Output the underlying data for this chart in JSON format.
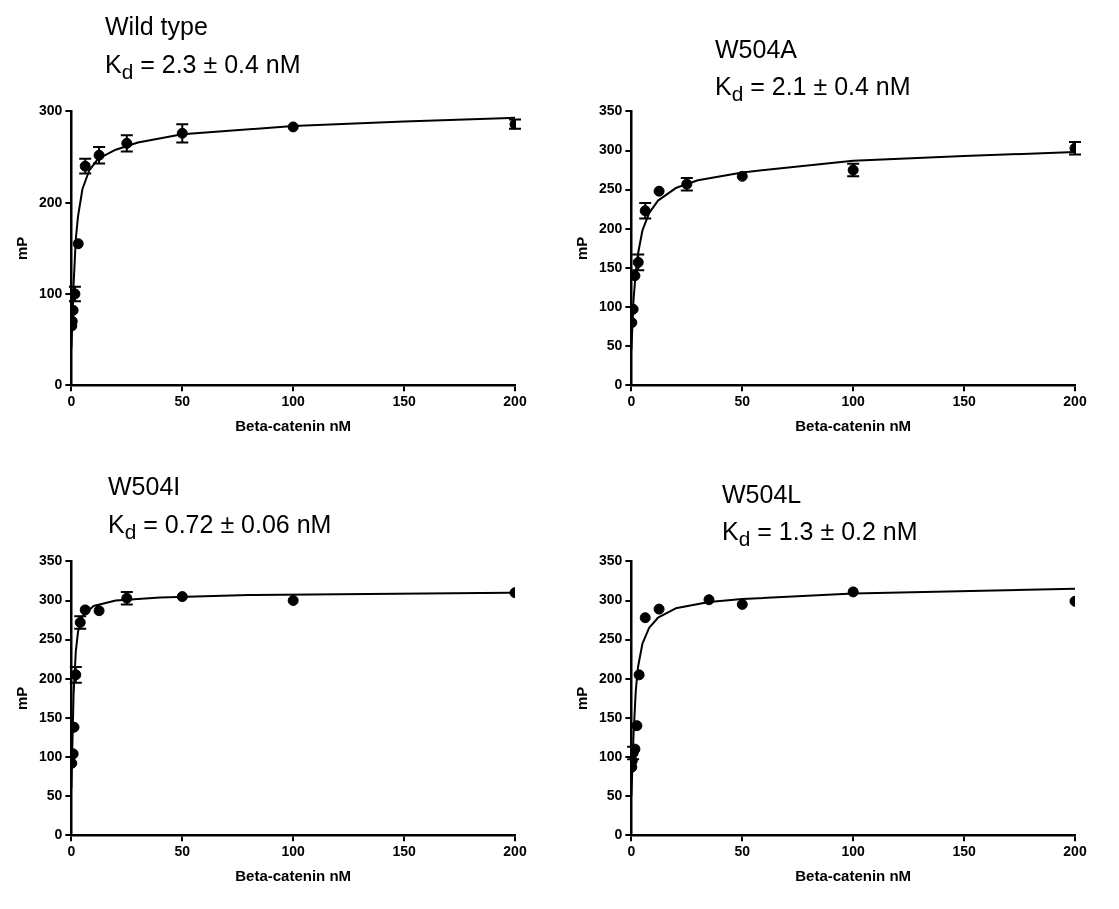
{
  "chart_data": [
    {
      "type": "scatter",
      "title": "Wild type",
      "subtitle": "K$_{d}$ = 2.3 ± 0.4 nM",
      "xlabel": "Beta-catenin nM",
      "ylabel": "mP",
      "xlim": [
        0,
        200
      ],
      "xticks": [
        0,
        50,
        100,
        150,
        200
      ],
      "ylim": [
        0,
        300
      ],
      "yticks": [
        0,
        100,
        200,
        300
      ],
      "marker": "circle",
      "series": [
        {
          "color": "#000000",
          "x": [
            0.2,
            0.4,
            0.8,
            1.6,
            3.1,
            6.25,
            12.5,
            25,
            50,
            100,
            200
          ],
          "values": [
            65,
            70,
            82,
            100,
            155,
            240,
            252,
            265,
            276,
            283,
            286
          ],
          "errors": [
            null,
            null,
            null,
            8,
            null,
            8,
            9,
            9,
            10,
            null,
            5
          ]
        },
        {
          "type": "line",
          "color": "#000000",
          "marker": "none",
          "x": [
            0,
            1,
            2,
            3,
            5,
            8,
            12,
            20,
            30,
            50,
            100,
            150,
            200
          ],
          "values": [
            40,
            110,
            160,
            185,
            215,
            235,
            248,
            258,
            266,
            275,
            284,
            289,
            293
          ]
        }
      ]
    },
    {
      "type": "scatter",
      "title": "W504A",
      "subtitle": "K$_{d}$ = 2.1 ± 0.4 nM",
      "xlabel": "Beta-catenin nM",
      "ylabel": "mP",
      "xlim": [
        0,
        200
      ],
      "xticks": [
        0,
        50,
        100,
        150,
        200
      ],
      "ylim": [
        0,
        350
      ],
      "yticks": [
        0,
        50,
        100,
        150,
        200,
        250,
        300,
        350
      ],
      "marker": "circle",
      "series": [
        {
          "color": "#000000",
          "x": [
            0.2,
            0.4,
            0.8,
            1.6,
            3.1,
            6.25,
            12.5,
            25,
            50,
            100,
            200
          ],
          "values": [
            80,
            null,
            97,
            140,
            157,
            223,
            248,
            257,
            267,
            275,
            303
          ],
          "errors": [
            null,
            null,
            null,
            null,
            10,
            10,
            null,
            8,
            null,
            8,
            8
          ]
        },
        {
          "type": "line",
          "color": "#000000",
          "marker": "none",
          "x": [
            0,
            1,
            2,
            3,
            5,
            8,
            12,
            20,
            30,
            50,
            100,
            150,
            200
          ],
          "values": [
            45,
            110,
            145,
            168,
            198,
            220,
            236,
            252,
            262,
            272,
            287,
            293,
            298
          ]
        }
      ]
    },
    {
      "type": "scatter",
      "title": "W504I",
      "subtitle": "K$_{d}$ = 0.72 ± 0.06 nM",
      "xlabel": "Beta-catenin nM",
      "ylabel": "mP",
      "xlim": [
        0,
        200
      ],
      "xticks": [
        0,
        50,
        100,
        150,
        200
      ],
      "ylim": [
        0,
        350
      ],
      "yticks": [
        0,
        50,
        100,
        150,
        200,
        250,
        300,
        350
      ],
      "marker": "circle",
      "series": [
        {
          "color": "#000000",
          "x": [
            0.2,
            0.4,
            0.8,
            1.2,
            2,
            4,
            6.25,
            12.5,
            25,
            50,
            100,
            200
          ],
          "values": [
            92,
            null,
            104,
            138,
            205,
            272,
            288,
            287,
            303,
            305,
            300,
            310
          ],
          "errors": [
            null,
            null,
            null,
            null,
            10,
            8,
            null,
            null,
            8,
            null,
            null,
            null
          ]
        },
        {
          "type": "line",
          "color": "#000000",
          "marker": "none",
          "x": [
            0,
            1,
            2,
            3,
            5,
            10,
            20,
            40,
            80,
            200
          ],
          "values": [
            60,
            180,
            235,
            260,
            280,
            293,
            300,
            304,
            307,
            310
          ]
        }
      ]
    },
    {
      "type": "scatter",
      "title": "W504L",
      "subtitle": "K$_{d}$ = 1.3 ± 0.2 nM",
      "xlabel": "Beta-catenin nM",
      "ylabel": "mP",
      "xlim": [
        0,
        200
      ],
      "xticks": [
        0,
        50,
        100,
        150,
        200
      ],
      "ylim": [
        0,
        350
      ],
      "yticks": [
        0,
        50,
        100,
        150,
        200,
        250,
        300,
        350
      ],
      "marker": "circle",
      "series": [
        {
          "color": "#000000",
          "x": [
            0.2,
            0.4,
            0.8,
            1.6,
            2.5,
            3.5,
            6.25,
            12.5,
            35,
            50,
            100,
            200
          ],
          "values": [
            87,
            95,
            105,
            110,
            140,
            205,
            278,
            289,
            301,
            295,
            311,
            299
          ],
          "errors": [
            null,
            null,
            8,
            null,
            null,
            null,
            null,
            null,
            null,
            null,
            null,
            null
          ]
        },
        {
          "type": "line",
          "color": "#000000",
          "marker": "none",
          "x": [
            0,
            1,
            2,
            3,
            5,
            8,
            12,
            20,
            35,
            50,
            100,
            200
          ],
          "values": [
            50,
            130,
            185,
            215,
            245,
            265,
            278,
            290,
            298,
            302,
            309,
            315
          ]
        }
      ]
    }
  ]
}
